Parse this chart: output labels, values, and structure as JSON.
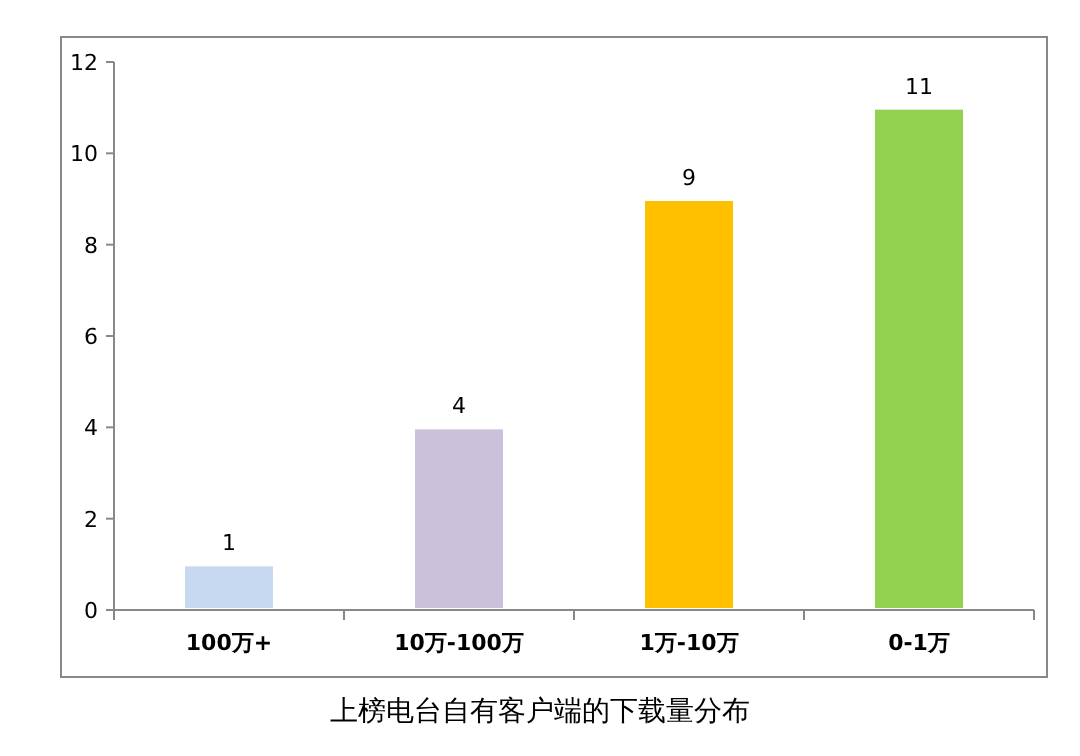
{
  "chart_data": {
    "type": "bar",
    "title": "上榜电台自有客户端的下载量分布",
    "categories": [
      "100万+",
      "10万-100万",
      "1万-10万",
      "0-1万"
    ],
    "values": [
      1,
      4,
      9,
      11
    ],
    "colors": [
      "#c6d9f1",
      "#ccc1da",
      "#ffc000",
      "#92d050"
    ],
    "ylim": [
      0,
      12
    ],
    "yticks": [
      0,
      2,
      4,
      6,
      8,
      10,
      12
    ],
    "data_labels": true,
    "grid": false
  }
}
